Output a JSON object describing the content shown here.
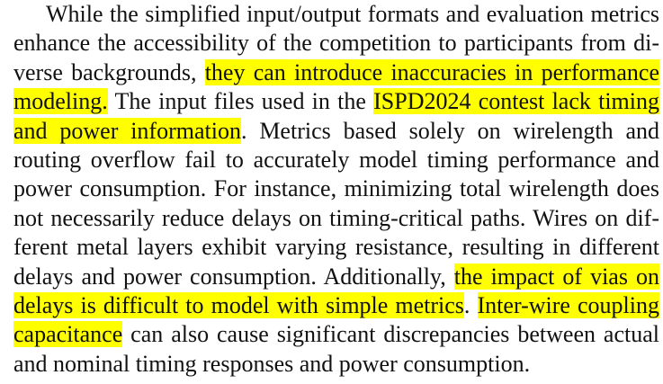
{
  "paragraph": {
    "lines": [
      [
        {
          "t": "While the simplified input/output formats and evaluation metrics",
          "h": false
        }
      ],
      [
        {
          "t": "enhance the accessibility of the competition to participants from di-",
          "h": false
        }
      ],
      [
        {
          "t": "verse backgrounds, ",
          "h": false
        },
        {
          "t": "they can introduce inaccuracies in performance",
          "h": true
        }
      ],
      [
        {
          "t": "modeling.",
          "h": true
        },
        {
          "t": " The input files used in the ",
          "h": false
        },
        {
          "t": "ISPD2024 contest lack timing",
          "h": true
        }
      ],
      [
        {
          "t": "and power information",
          "h": true
        },
        {
          "t": ". Metrics based solely on wirelength and",
          "h": false
        }
      ],
      [
        {
          "t": "routing overflow fail to accurately model timing performance and",
          "h": false
        }
      ],
      [
        {
          "t": "power consumption. For instance, minimizing total wirelength does",
          "h": false
        }
      ],
      [
        {
          "t": "not necessarily reduce delays on timing-critical paths. Wires on dif-",
          "h": false
        }
      ],
      [
        {
          "t": "ferent metal layers exhibit varying resistance, resulting in different",
          "h": false
        }
      ],
      [
        {
          "t": "delays and power consumption. Additionally, ",
          "h": false
        },
        {
          "t": "the impact of vias on",
          "h": true
        }
      ],
      [
        {
          "t": "delays is difficult to model with simple metrics",
          "h": true
        },
        {
          "t": ". ",
          "h": false
        },
        {
          "t": "Inter-wire coupling",
          "h": true
        }
      ],
      [
        {
          "t": "capacitance",
          "h": true
        },
        {
          "t": " can also cause significant discrepancies between actual",
          "h": false
        }
      ],
      [
        {
          "t": "and nominal timing responses and power consumption.",
          "h": false
        }
      ]
    ]
  }
}
